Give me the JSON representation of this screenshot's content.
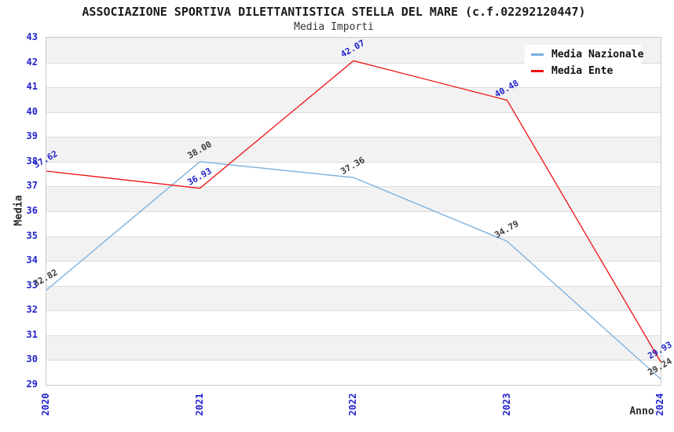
{
  "chart_data": {
    "type": "line",
    "title": "ASSOCIAZIONE SPORTIVA DILETTANTISTICA STELLA DEL MARE (c.f.02292120447)",
    "subtitle": "Media Importi",
    "xlabel": "Anno",
    "ylabel": "Media",
    "categories": [
      "2020",
      "2021",
      "2022",
      "2023",
      "2024"
    ],
    "ylim": [
      29,
      43
    ],
    "y_tick_step": 1,
    "grid": "horizontal-bands",
    "legend_position": "top-right",
    "series": [
      {
        "name": "Media Nazionale",
        "color": "#79aede",
        "label_color": "#3c3c3c",
        "values": [
          32.82,
          38.0,
          37.36,
          34.79,
          29.24
        ],
        "labels": [
          "32.82",
          "38.00",
          "37.36",
          "34.79",
          "29.24"
        ]
      },
      {
        "name": "Media Ente",
        "color": "#ee1111",
        "label_color": "#2222cc",
        "values": [
          37.62,
          36.93,
          42.07,
          40.48,
          29.93
        ],
        "labels": [
          "37.62",
          "36.93",
          "42.07",
          "40.48",
          "29.93"
        ]
      }
    ],
    "colors": {
      "title_text": "#1a1a1a",
      "subtitle_text": "#333333",
      "tick_label": "#2222cc",
      "axis_title_text": "#2a2a2a",
      "band_gray": "#f2f2f2",
      "band_white": "#ffffff",
      "gridline": "#dcdcdc",
      "plot_border": "#c9c9c9",
      "background": "#ffffff",
      "legend_text": "#111111",
      "legend_bg": "#ffffff"
    }
  }
}
